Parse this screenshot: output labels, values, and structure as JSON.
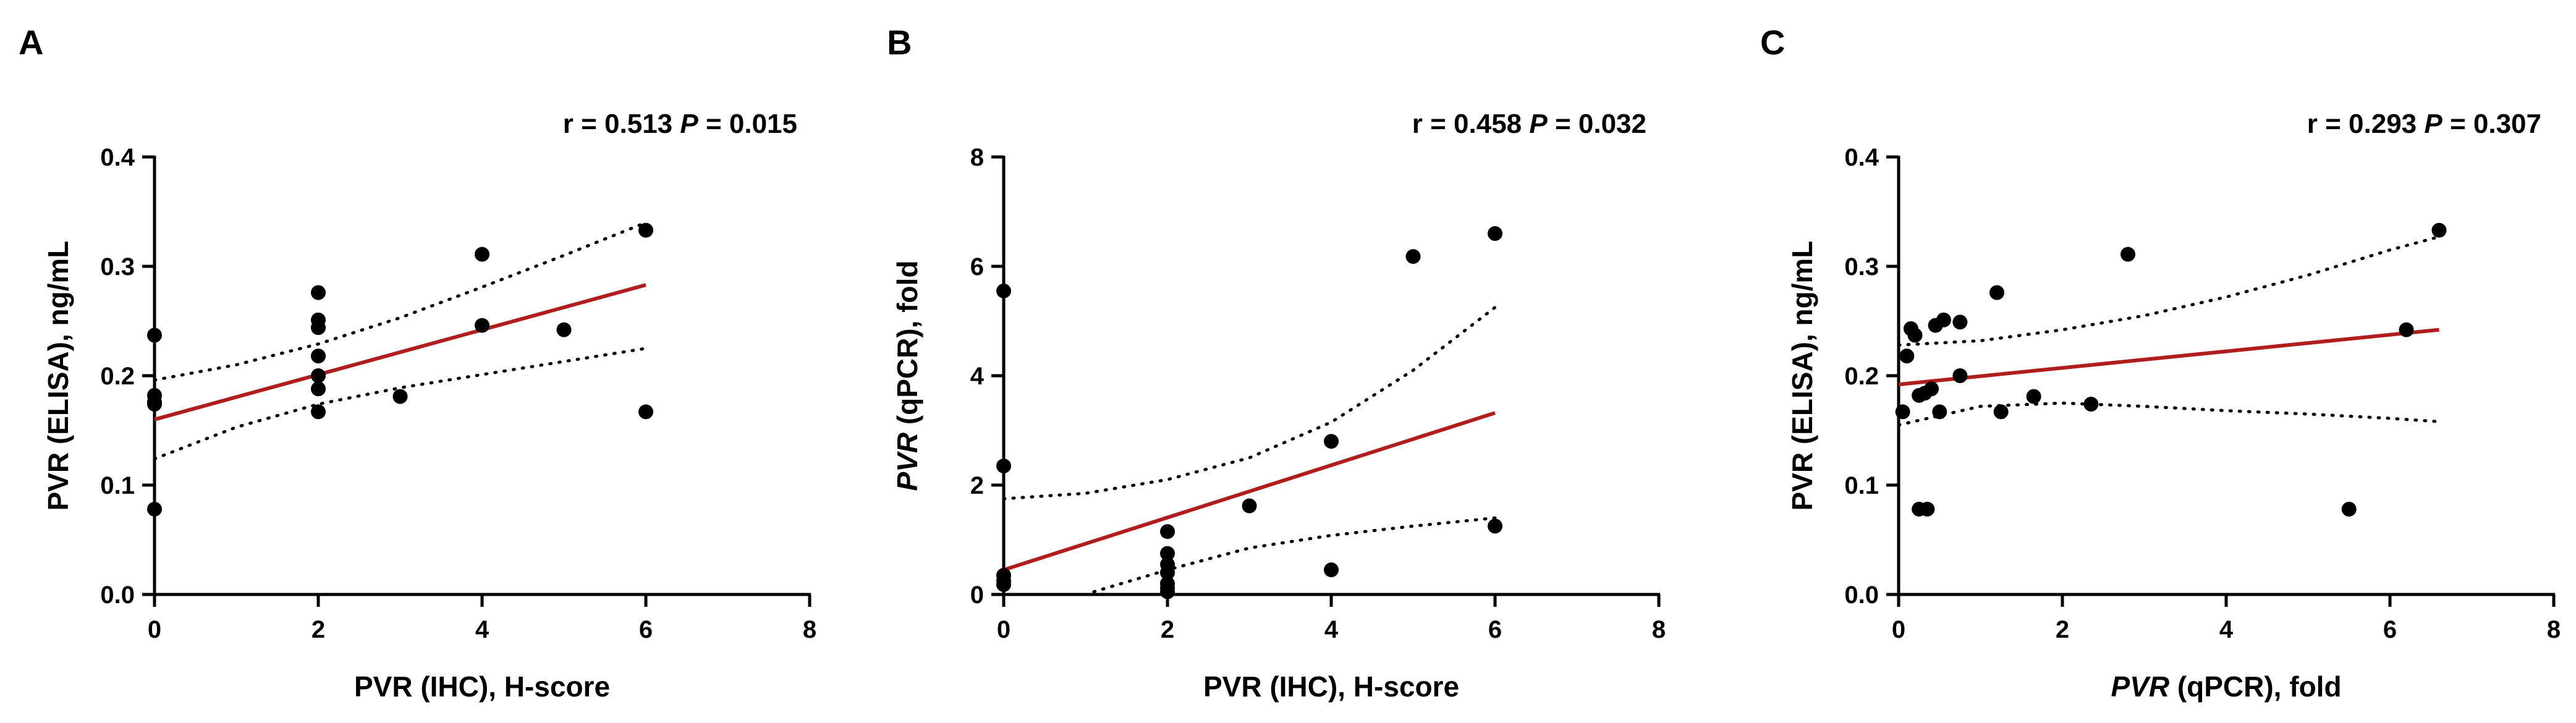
{
  "chart_data": [
    {
      "type": "scatter",
      "panel": "A",
      "stat_r": "r = 0.513",
      "stat_p_label": "P",
      "stat_p_value": " = 0.015",
      "xlabel": {
        "italic": "",
        "rest": "PVR (IHC), H-score"
      },
      "ylabel": {
        "italic": "",
        "rest": "PVR (ELISA), ng/mL"
      },
      "xlim": [
        0,
        8
      ],
      "ylim": [
        0,
        0.4
      ],
      "xticks": [
        0,
        2,
        4,
        6,
        8
      ],
      "xtick_labels": [
        "0",
        "2",
        "4",
        "6",
        "8"
      ],
      "yticks": [
        0,
        0.1,
        0.2,
        0.3,
        0.4
      ],
      "ytick_labels": [
        "0.0",
        "0.1",
        "0.2",
        "0.3",
        "0.4"
      ],
      "points": [
        [
          0,
          0.237
        ],
        [
          0,
          0.182
        ],
        [
          0,
          0.176
        ],
        [
          0,
          0.174
        ],
        [
          0,
          0.078
        ],
        [
          2,
          0.276
        ],
        [
          2,
          0.251
        ],
        [
          2,
          0.244
        ],
        [
          2,
          0.218
        ],
        [
          2,
          0.2
        ],
        [
          2,
          0.188
        ],
        [
          2,
          0.167
        ],
        [
          3,
          0.181
        ],
        [
          4,
          0.311
        ],
        [
          4,
          0.246
        ],
        [
          5,
          0.242
        ],
        [
          6,
          0.333
        ],
        [
          6,
          0.167
        ]
      ],
      "fit_line": [
        [
          0,
          0.16
        ],
        [
          6,
          0.283
        ]
      ],
      "ci_upper": [
        [
          0,
          0.196
        ],
        [
          1,
          0.21
        ],
        [
          2,
          0.229
        ],
        [
          3,
          0.253
        ],
        [
          4,
          0.281
        ],
        [
          5,
          0.31
        ],
        [
          6,
          0.34
        ]
      ],
      "ci_lower": [
        [
          0,
          0.124
        ],
        [
          1,
          0.153
        ],
        [
          2,
          0.174
        ],
        [
          3,
          0.189
        ],
        [
          4,
          0.201
        ],
        [
          5,
          0.213
        ],
        [
          6,
          0.225
        ]
      ],
      "colors": {
        "points": "#000000",
        "fit": "#b01d1d",
        "ci": "#000000",
        "axis": "#000000"
      }
    },
    {
      "type": "scatter",
      "panel": "B",
      "stat_r": "r = 0.458",
      "stat_p_label": "P",
      "stat_p_value": " = 0.032",
      "xlabel": {
        "italic": "",
        "rest": "PVR (IHC), H-score"
      },
      "ylabel": {
        "italic": "PVR",
        "rest": " (qPCR), fold"
      },
      "xlim": [
        0,
        8
      ],
      "ylim": [
        0,
        8
      ],
      "xticks": [
        0,
        2,
        4,
        6,
        8
      ],
      "xtick_labels": [
        "0",
        "2",
        "4",
        "6",
        "8"
      ],
      "yticks": [
        0,
        2,
        4,
        6,
        8
      ],
      "ytick_labels": [
        "0",
        "2",
        "4",
        "6",
        "8"
      ],
      "points": [
        [
          0,
          5.55
        ],
        [
          0,
          2.35
        ],
        [
          0,
          0.35
        ],
        [
          0,
          0.25
        ],
        [
          0,
          0.18
        ],
        [
          2,
          1.15
        ],
        [
          2,
          0.75
        ],
        [
          2,
          0.55
        ],
        [
          2,
          0.4
        ],
        [
          2,
          0.2
        ],
        [
          2,
          0.12
        ],
        [
          2,
          0.05
        ],
        [
          3,
          1.62
        ],
        [
          4,
          2.8
        ],
        [
          4,
          0.45
        ],
        [
          5,
          6.18
        ],
        [
          6,
          6.6
        ],
        [
          6,
          1.25
        ]
      ],
      "fit_line": [
        [
          0,
          0.45
        ],
        [
          6,
          3.32
        ]
      ],
      "ci_upper": [
        [
          0,
          1.75
        ],
        [
          1,
          1.85
        ],
        [
          2,
          2.1
        ],
        [
          3,
          2.5
        ],
        [
          4,
          3.15
        ],
        [
          5,
          4.1
        ],
        [
          6,
          5.25
        ]
      ],
      "ci_lower": [
        [
          1.1,
          0.05
        ],
        [
          2,
          0.45
        ],
        [
          3,
          0.85
        ],
        [
          4,
          1.08
        ],
        [
          5,
          1.25
        ],
        [
          6,
          1.4
        ]
      ],
      "colors": {
        "points": "#000000",
        "fit": "#b01d1d",
        "ci": "#000000",
        "axis": "#000000"
      }
    },
    {
      "type": "scatter",
      "panel": "C",
      "stat_r": "r = 0.293",
      "stat_p_label": "P",
      "stat_p_value": " = 0.307",
      "xlabel": {
        "italic": "PVR",
        "rest": " (qPCR), fold"
      },
      "ylabel": {
        "italic": "",
        "rest": "PVR (ELISA), ng/mL"
      },
      "xlim": [
        0,
        8
      ],
      "ylim": [
        0,
        0.4
      ],
      "xticks": [
        0,
        2,
        4,
        6,
        8
      ],
      "xtick_labels": [
        "0",
        "2",
        "4",
        "6",
        "8"
      ],
      "yticks": [
        0,
        0.1,
        0.2,
        0.3,
        0.4
      ],
      "ytick_labels": [
        "0.0",
        "0.1",
        "0.2",
        "0.3",
        "0.4"
      ],
      "points": [
        [
          0.05,
          0.167
        ],
        [
          0.1,
          0.218
        ],
        [
          0.15,
          0.243
        ],
        [
          0.2,
          0.237
        ],
        [
          0.25,
          0.182
        ],
        [
          0.25,
          0.078
        ],
        [
          0.32,
          0.184
        ],
        [
          0.35,
          0.078
        ],
        [
          0.4,
          0.188
        ],
        [
          0.45,
          0.246
        ],
        [
          0.5,
          0.167
        ],
        [
          0.55,
          0.251
        ],
        [
          0.75,
          0.249
        ],
        [
          0.75,
          0.2
        ],
        [
          1.2,
          0.276
        ],
        [
          1.25,
          0.167
        ],
        [
          1.65,
          0.181
        ],
        [
          2.35,
          0.174
        ],
        [
          2.8,
          0.311
        ],
        [
          5.5,
          0.078
        ],
        [
          6.2,
          0.242
        ],
        [
          6.6,
          0.333
        ]
      ],
      "fit_line": [
        [
          0,
          0.192
        ],
        [
          6.6,
          0.242
        ]
      ],
      "ci_upper": [
        [
          0,
          0.228
        ],
        [
          1,
          0.232
        ],
        [
          2,
          0.242
        ],
        [
          3,
          0.255
        ],
        [
          4,
          0.272
        ],
        [
          5,
          0.292
        ],
        [
          6,
          0.315
        ],
        [
          6.6,
          0.327
        ]
      ],
      "ci_lower": [
        [
          0,
          0.155
        ],
        [
          1,
          0.172
        ],
        [
          2,
          0.175
        ],
        [
          3,
          0.172
        ],
        [
          4,
          0.168
        ],
        [
          5,
          0.165
        ],
        [
          6,
          0.161
        ],
        [
          6.6,
          0.158
        ]
      ],
      "colors": {
        "points": "#000000",
        "fit": "#b01d1d",
        "ci": "#000000",
        "axis": "#000000"
      }
    }
  ]
}
